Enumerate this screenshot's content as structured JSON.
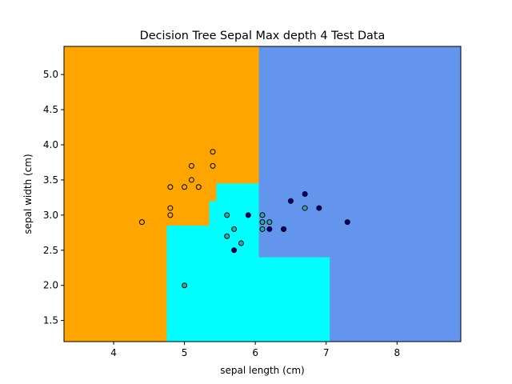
{
  "chart_data": {
    "type": "scatter",
    "title": "Decision Tree Sepal Max depth 4 Test Data",
    "xlabel": "sepal length (cm)",
    "ylabel": "sepal width (cm)",
    "xlim": [
      3.3,
      8.9
    ],
    "ylim": [
      1.2,
      5.4
    ],
    "xticks": [
      4,
      5,
      6,
      7,
      8
    ],
    "yticks": [
      1.5,
      2.0,
      2.5,
      3.0,
      3.5,
      4.0,
      4.5,
      5.0
    ],
    "grid": false,
    "background_color": "#6495ED",
    "regions": [
      {
        "class": "setosa",
        "color": "#FFA500",
        "x": [
          3.3,
          6.05
        ],
        "y": [
          3.45,
          5.4
        ]
      },
      {
        "class": "setosa",
        "color": "#FFA500",
        "x": [
          3.3,
          5.95
        ],
        "y": [
          3.45,
          5.4
        ]
      },
      {
        "class": "setosa",
        "color": "#FFA500",
        "x": [
          3.3,
          5.45
        ],
        "y": [
          3.45,
          5.4
        ]
      },
      {
        "class": "setosa",
        "color": "#FFA500",
        "x": [
          3.3,
          6.05
        ],
        "y": [
          3.45,
          5.4
        ]
      },
      {
        "class": "setosa",
        "color": "#FFA500",
        "x": [
          3.3,
          5.35
        ],
        "y": [
          2.85,
          3.45
        ]
      },
      {
        "class": "setosa",
        "color": "#FFA500",
        "x": [
          3.3,
          5.45
        ],
        "y": [
          3.2,
          3.45
        ]
      },
      {
        "class": "setosa",
        "color": "#FFA500",
        "x": [
          3.3,
          4.75
        ],
        "y": [
          1.2,
          2.85
        ]
      },
      {
        "class": "versicolor",
        "color": "#00FFFF",
        "x": [
          5.45,
          6.05
        ],
        "y": [
          2.4,
          3.45
        ]
      },
      {
        "class": "versicolor",
        "color": "#00FFFF",
        "x": [
          5.35,
          5.45
        ],
        "y": [
          2.4,
          3.2
        ]
      },
      {
        "class": "versicolor",
        "color": "#00FFFF",
        "x": [
          4.75,
          5.35
        ],
        "y": [
          2.4,
          2.85
        ]
      },
      {
        "class": "versicolor",
        "color": "#00FFFF",
        "x": [
          4.75,
          7.05
        ],
        "y": [
          1.2,
          2.4
        ]
      }
    ],
    "series": [
      {
        "class": "setosa",
        "color": "#FFA500",
        "points": [
          [
            4.4,
            2.9
          ],
          [
            4.8,
            3.4
          ],
          [
            4.8,
            3.1
          ],
          [
            4.8,
            3.0
          ],
          [
            5.0,
            3.4
          ],
          [
            5.1,
            3.5
          ],
          [
            5.1,
            3.7
          ],
          [
            5.2,
            3.4
          ],
          [
            5.4,
            3.9
          ],
          [
            5.4,
            3.7
          ]
        ]
      },
      {
        "class": "versicolor",
        "color": "#20B2AA",
        "points": [
          [
            5.0,
            2.0
          ],
          [
            5.6,
            3.0
          ],
          [
            5.6,
            2.7
          ],
          [
            5.7,
            2.8
          ],
          [
            5.8,
            2.6
          ],
          [
            6.1,
            3.0
          ],
          [
            6.1,
            2.9
          ],
          [
            6.1,
            2.8
          ],
          [
            6.2,
            2.9
          ],
          [
            6.4,
            2.8
          ],
          [
            6.7,
            3.1
          ]
        ]
      },
      {
        "class": "virginica",
        "color": "#000080",
        "points": [
          [
            5.7,
            2.5
          ],
          [
            5.9,
            3.0
          ],
          [
            6.2,
            2.8
          ],
          [
            6.4,
            2.8
          ],
          [
            6.5,
            3.2
          ],
          [
            6.7,
            3.3
          ],
          [
            6.9,
            3.1
          ],
          [
            7.3,
            2.9
          ]
        ]
      }
    ]
  }
}
